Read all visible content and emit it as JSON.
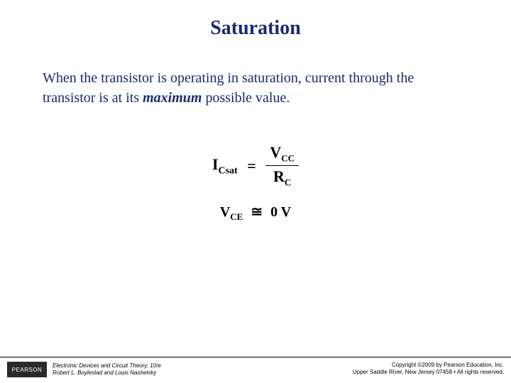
{
  "title": "Saturation",
  "body": {
    "pre": "When the transistor is operating in saturation, current through the transistor is at its ",
    "emph": "maximum",
    "post": " possible value."
  },
  "equations": {
    "eq1": {
      "lhs_sym": "I",
      "lhs_sub": "Csat",
      "num_sym": "V",
      "num_sub": "CC",
      "den_sym": "R",
      "den_sub": "C"
    },
    "eq2": {
      "lhs_sym": "V",
      "lhs_sub": "CE",
      "approx": "≅",
      "rhs": "0 V"
    }
  },
  "footer": {
    "logo": "PEARSON",
    "left_line1": "Electronic Devices and Circuit Theory, 10/e",
    "left_line2": "Robert L. Boylestad and Louis Nashelsky",
    "right_line1": "Copyright ©2009 by Pearson Education, Inc.",
    "right_line2": "Upper Saddle River, New Jersey 07458 • All rights reserved."
  },
  "colors": {
    "title_color": "#1a2a6c",
    "body_color": "#1a2a6c",
    "background": "#ffffff"
  }
}
